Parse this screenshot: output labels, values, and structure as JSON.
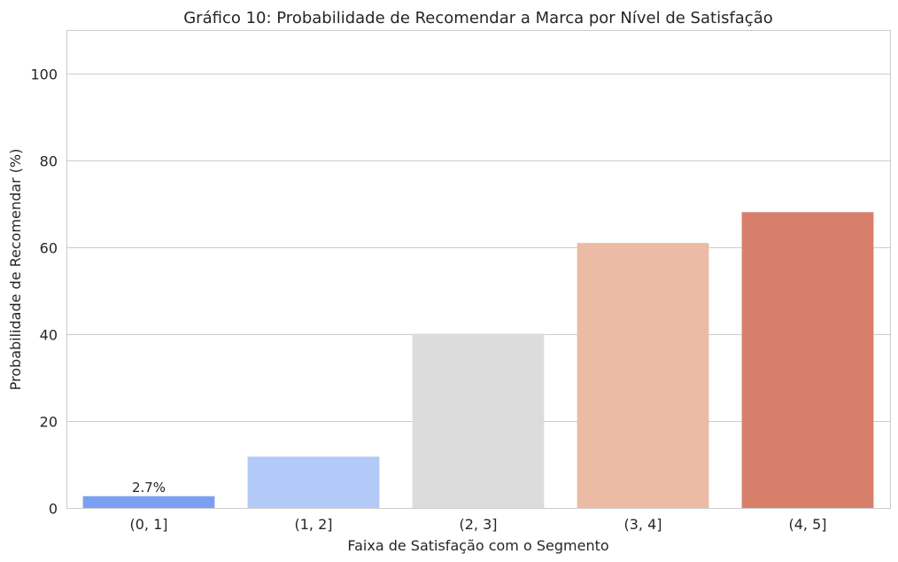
{
  "chart_data": {
    "type": "bar",
    "title": "Gráfico 10: Probabilidade de Recomendar a Marca por Nível de Satisfação",
    "xlabel": "Faixa de Satisfação com o Segmento",
    "ylabel": "Probabilidade de Recomendar (%)",
    "categories": [
      "(0, 1]",
      "(1, 2]",
      "(2, 3]",
      "(3, 4]",
      "(4, 5]"
    ],
    "values": [
      2.7,
      11.8,
      40.1,
      61.0,
      68.1
    ],
    "colors": [
      "#7b9ff2",
      "#b3c9f7",
      "#dcdcdc",
      "#ecbba4",
      "#d87f6c"
    ],
    "ylim": [
      0,
      110
    ],
    "yticks": [
      0,
      20,
      40,
      60,
      80,
      100
    ],
    "ytick_labels": [
      "0",
      "20",
      "40",
      "60",
      "80",
      "100"
    ],
    "grid": true,
    "annotations": [
      {
        "category_index": 0,
        "text": "2.7%"
      }
    ]
  }
}
